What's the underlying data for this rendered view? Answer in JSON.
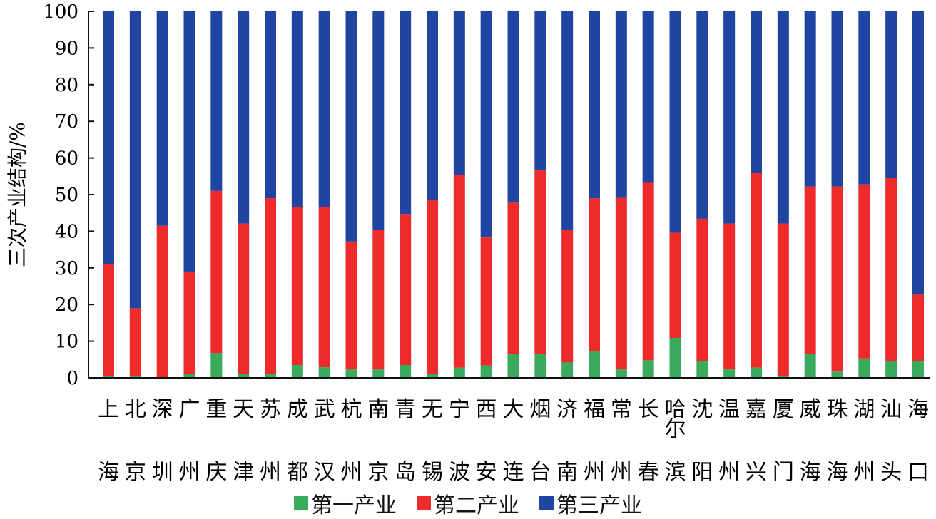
{
  "chart_data": {
    "type": "bar",
    "stacked": true,
    "title": "",
    "xlabel": "",
    "ylabel": "三次产业结构/%",
    "ylim": [
      0,
      100
    ],
    "yticks": [
      0,
      10,
      20,
      30,
      40,
      50,
      60,
      70,
      80,
      90,
      100
    ],
    "grid": false,
    "legend_position": "bottom",
    "categories": [
      "上海",
      "北京",
      "深圳",
      "广州",
      "重庆",
      "天津",
      "苏州",
      "成都",
      "武汉",
      "杭州",
      "南京",
      "青岛",
      "无锡",
      "宁波",
      "西安",
      "大连",
      "烟台",
      "济南",
      "福州",
      "常州",
      "长春",
      "哈尔滨",
      "沈阳",
      "温州",
      "嘉兴",
      "厦门",
      "威海",
      "珠海",
      "湖州",
      "汕头",
      "海口"
    ],
    "series": [
      {
        "name": "第一产业",
        "color": "#3aaa5c",
        "values": [
          0.4,
          0.4,
          0.1,
          1.0,
          6.8,
          1.0,
          1.0,
          3.5,
          2.9,
          2.3,
          2.3,
          3.5,
          1.0,
          2.8,
          3.4,
          6.6,
          6.6,
          4.2,
          7.2,
          2.3,
          4.8,
          10.9,
          4.6,
          2.3,
          2.8,
          0.4,
          6.6,
          1.7,
          5.3,
          4.6,
          4.6
        ]
      },
      {
        "name": "第二产业",
        "color": "#ee2a2a",
        "values": [
          30.6,
          18.6,
          41.4,
          28.0,
          44.2,
          41.1,
          48.0,
          43.0,
          43.6,
          34.9,
          38.0,
          41.2,
          47.5,
          52.5,
          34.9,
          41.2,
          50.0,
          36.1,
          41.8,
          46.8,
          48.6,
          28.7,
          38.8,
          39.8,
          53.1,
          41.7,
          45.6,
          50.5,
          47.5,
          50.0,
          18.1
        ]
      },
      {
        "name": "第三产业",
        "color": "#1f44a1",
        "values": [
          69.0,
          81.0,
          58.5,
          71.0,
          49.0,
          57.9,
          51.0,
          53.5,
          53.5,
          62.8,
          59.7,
          55.3,
          51.5,
          44.7,
          61.7,
          52.2,
          43.4,
          59.7,
          51.0,
          50.9,
          46.6,
          60.4,
          56.6,
          57.9,
          44.1,
          57.9,
          47.8,
          47.8,
          47.2,
          45.4,
          77.3
        ]
      }
    ]
  }
}
